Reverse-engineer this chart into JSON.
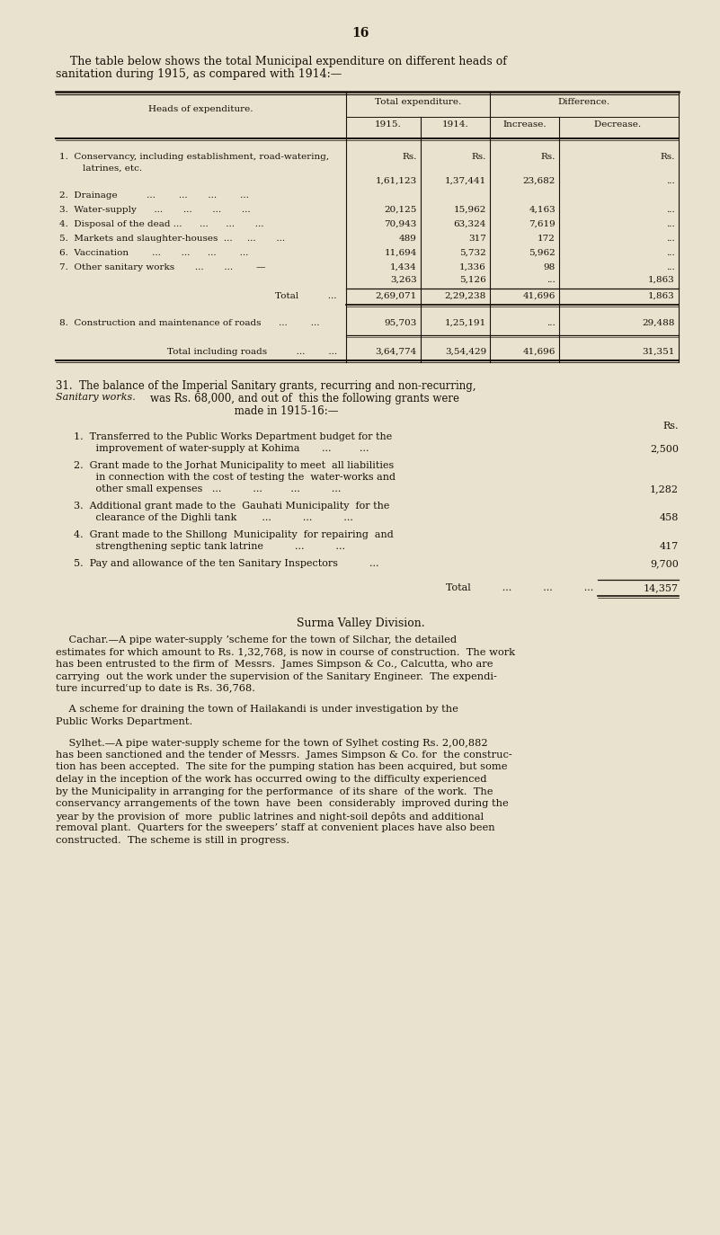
{
  "bg_color": "#e8e2ce",
  "text_color": "#1a1008",
  "page_number": "16",
  "intro_line1": "    The table below shows the total Municipal expenditure on different heads of",
  "intro_line2": "sanitation during 1915, as compared with 1914:—",
  "table_header_1": "Heads of expenditure.",
  "table_header_2a": "Total expenditure.",
  "table_header_2b": "Difference.",
  "table_subheader": [
    "1915.",
    "1914.",
    "Increase.",
    "Decrease."
  ],
  "col_rs_headers": [
    "Rs.",
    "Rs.",
    "Rs.",
    "Rs."
  ],
  "row1_label1": "1.  Conservancy, including establishment, road-watering,",
  "row1_label2": "        latrines, etc.",
  "row1_vals": [
    "1,61,123",
    "1,37,441",
    "23,682",
    "..."
  ],
  "row2_label": "2.  Drainage          ...        ...       ...        ...",
  "row3_label": "3.  Water-supply      ...       ...       ...       ...",
  "row3_vals": [
    "20,125",
    "15,962",
    "4,163",
    "..."
  ],
  "row4_label": "4.  Disposal of the dead ...      ...      ...       ...",
  "row4_vals": [
    "70,943",
    "63,324",
    "7,619",
    "..."
  ],
  "row5_label": "5.  Markets and slaughter-houses  ...     ...       ...",
  "row5_vals": [
    "489",
    "317",
    "172",
    "..."
  ],
  "row6_label": "6.  Vaccination        ...       ...      ...        ...",
  "row6_vals": [
    "11,694",
    "5,732",
    "5,962",
    "..."
  ],
  "row7_label": "7.  Other sanitary works       ...       ...        —",
  "row7_vals": [
    "1,434",
    "1,336",
    "98",
    "..."
  ],
  "row7b_vals": [
    "3,263",
    "5,126",
    "...",
    "1,863"
  ],
  "total_label": "Total",
  "total_vals": [
    "2,69,071",
    "2,29,238",
    "41,696",
    "1,863"
  ],
  "row8_label": "8.  Construction and maintenance of roads      ...        ...",
  "row8_vals": [
    "95,703",
    "1,25,191",
    "...",
    "29,488"
  ],
  "tir_label": "Total including roads",
  "tir_vals": [
    "3,64,774",
    "3,54,429",
    "41,696",
    "31,351"
  ],
  "s31_line1": "31.  The balance of the Imperial Sanitary grants, recurring and non-recurring,",
  "s31_italic": "Sanitary works.",
  "s31_line2": "                         was Rs. 68,000, and out of  this the following grants were",
  "s31_line3": "                                             made in 1915-16:—",
  "grants_rs": "Rs.",
  "grant1_line1": "1.  Transferred to the Public Works Department budget for the",
  "grant1_line2": "       improvement of water-supply at Kohima       ...         ...",
  "grant1_amt": "2,500",
  "grant2_line1": "2.  Grant made to the Jorhat Municipality to meet  all liabilities",
  "grant2_line2": "       in connection with the cost of testing the  water-works and",
  "grant2_line3": "       other small expenses   ...          ...         ...          ...",
  "grant2_amt": "1,282",
  "grant3_line1": "3.  Additional grant made to the  Gauhati Municipality  for the",
  "grant3_line2": "       clearance of the Dighli tank        ...          ...          ...",
  "grant3_amt": "458",
  "grant4_line1": "4.  Grant made to the Shillong  Municipality  for repairing  and",
  "grant4_line2": "       strengthening septic tank latrine          ...          ...",
  "grant4_amt": "417",
  "grant5_line1": "5.  Pay and allowance of the ten Sanitary Inspectors          ...",
  "grant5_amt": "9,700",
  "grants_total_label": "Total",
  "grants_total": "14,357",
  "surma_title": "Surma Valley Division.",
  "cachar_lines": [
    "    Cachar.—A pipe water-supply ʼscheme for the town of Silchar, the detailed",
    "estimates for which amount to Rs. 1,32,768, is now in course of construction.  The work",
    "has been entrusted to the firm of  Messrs.  James Simpson & Co., Calcutta, who are",
    "carrying  out the work under the supervision of the Sanitary Engineer.  The expendi-",
    "ture incurredʿup to date is Rs. 36,768."
  ],
  "cachar2_lines": [
    "    A scheme for draining the town of Hailakandi is under investigation by the",
    "Public Works Department."
  ],
  "sylhet_lines": [
    "    Sylhet.—A pipe water-supply scheme for the town of Sylhet costing Rs. 2,00,882",
    "has been sanctioned and the tender of Messrs.  James Simpson & Co. for  the construc-",
    "tion has been accepted.  The site for the pumping station has been acquired, but some",
    "delay in the inception of the work has occurred owing to the difficulty experienced",
    "by the Municipality in arranging for the performance  of its share  of the work.  The",
    "conservancy arrangements of the town  have  been  considerably  improved during the",
    "year by the provision of  more  public latrines and night-soil depôts and additional",
    "removal plant.  Quarters for the sweepers’ staff at convenient places have also been",
    "constructed.  The scheme is still in progress."
  ]
}
